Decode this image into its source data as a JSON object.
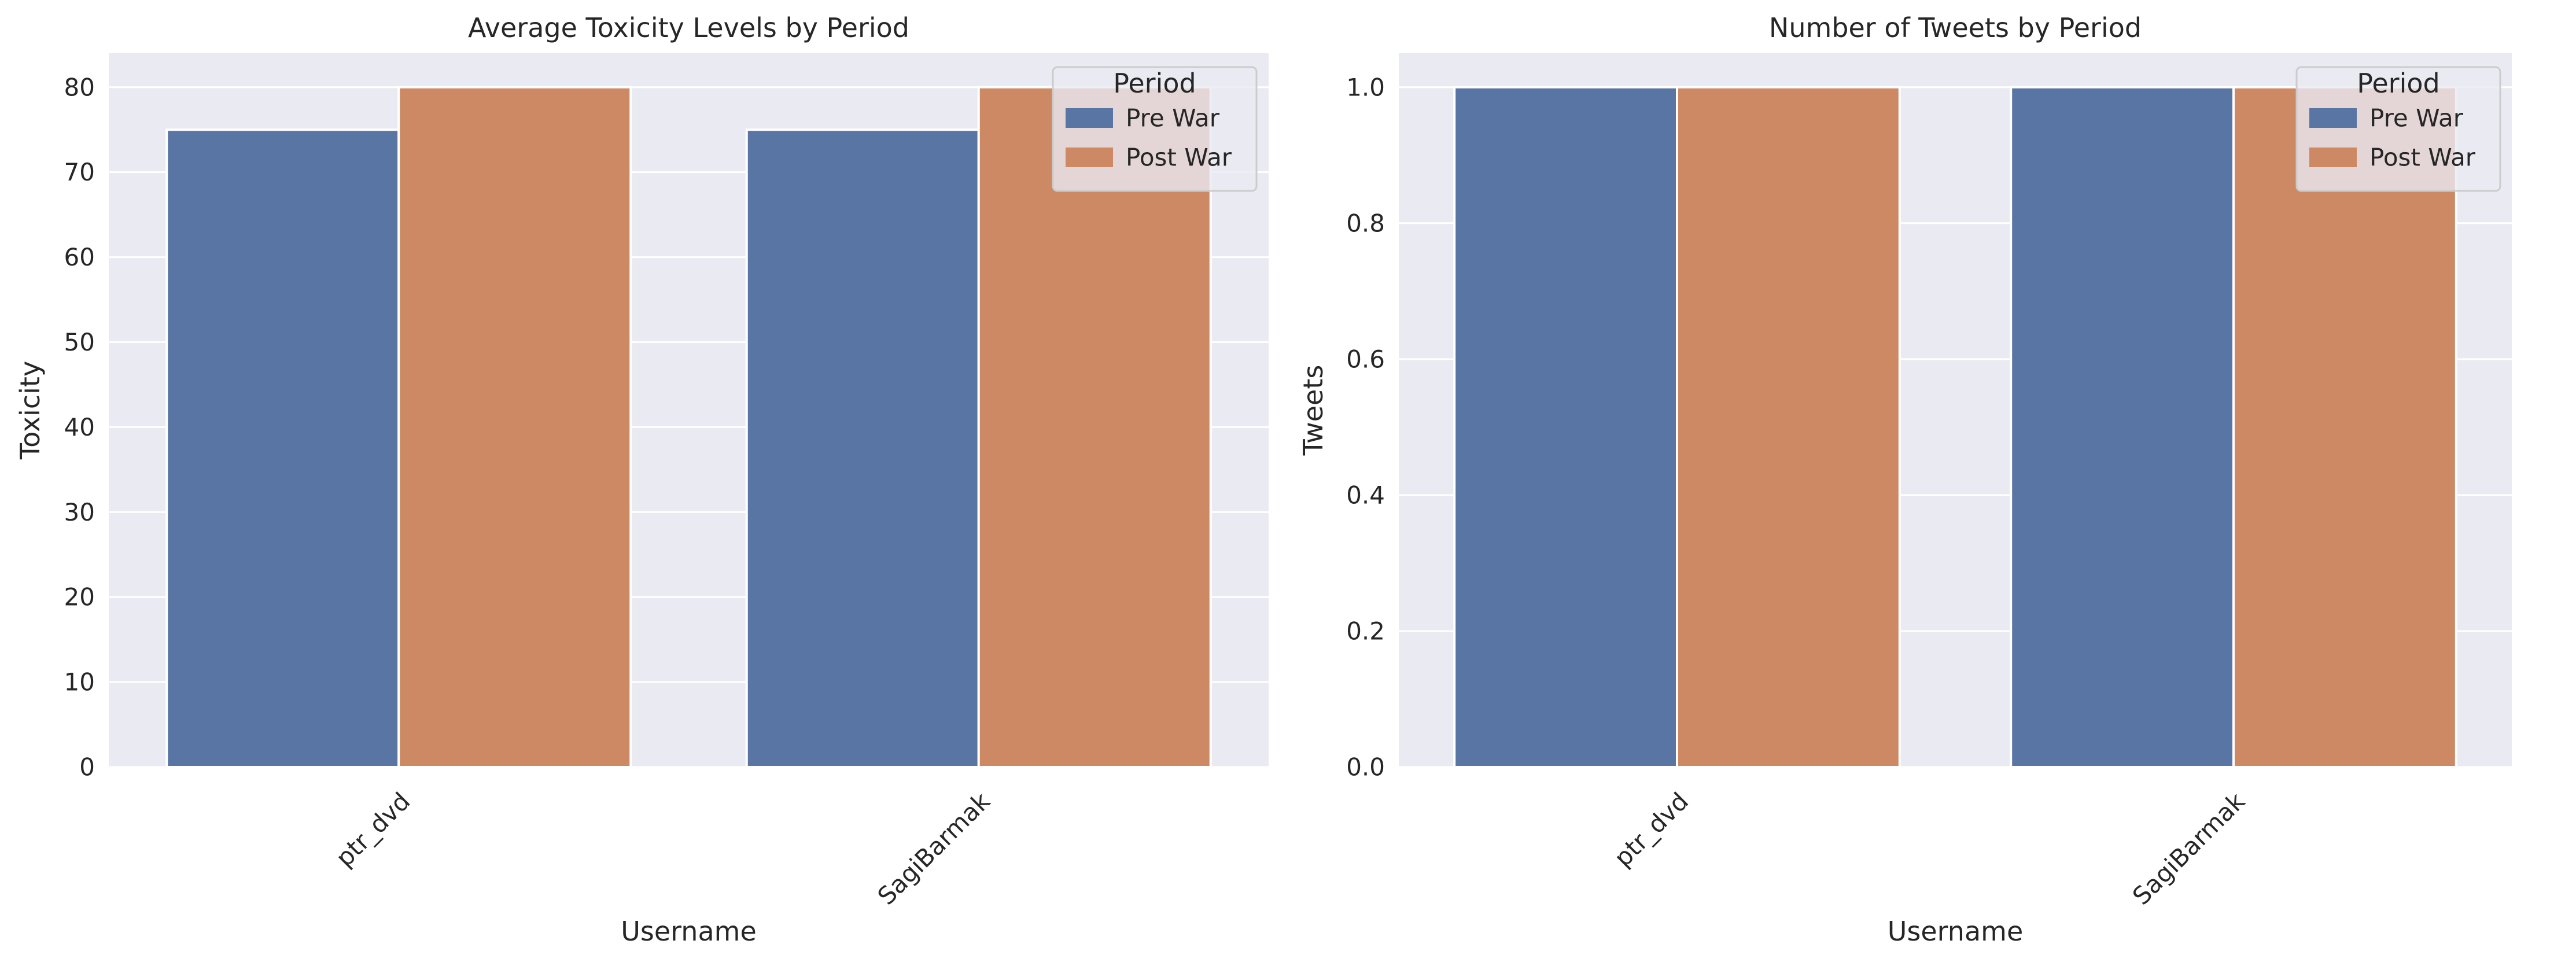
{
  "colors": {
    "background": "#ffffff",
    "plot_background": "#eaeaf2",
    "grid": "#ffffff",
    "pre_war": "#5975a4",
    "post_war": "#cc8963",
    "bar_edge": "#ffffff",
    "legend_border": "#cccccc"
  },
  "chart_data": [
    {
      "type": "bar",
      "title": "Average Toxicity Levels by Period",
      "xlabel": "Username",
      "ylabel": "Toxicity",
      "categories": [
        "ptr_dvd",
        "SagiBarmak"
      ],
      "series": [
        {
          "name": "Pre War",
          "values": [
            75,
            75
          ]
        },
        {
          "name": "Post War",
          "values": [
            80,
            80
          ]
        }
      ],
      "ylim": [
        0,
        84
      ],
      "yticks": [
        0,
        10,
        20,
        30,
        40,
        50,
        60,
        70,
        80
      ],
      "ytick_labels": [
        "0",
        "10",
        "20",
        "30",
        "40",
        "50",
        "60",
        "70",
        "80"
      ],
      "xtick_rotation": 45,
      "grid": true,
      "legend": {
        "title": "Period",
        "placement": "top-right"
      }
    },
    {
      "type": "bar",
      "title": "Number of Tweets by Period",
      "xlabel": "Username",
      "ylabel": "Tweets",
      "categories": [
        "ptr_dvd",
        "SagiBarmak"
      ],
      "series": [
        {
          "name": "Pre War",
          "values": [
            1,
            1
          ]
        },
        {
          "name": "Post War",
          "values": [
            1,
            1
          ]
        }
      ],
      "ylim": [
        0,
        1.05
      ],
      "yticks": [
        0,
        0.2,
        0.4,
        0.6,
        0.8,
        1.0
      ],
      "ytick_labels": [
        "0.0",
        "0.2",
        "0.4",
        "0.6",
        "0.8",
        "1.0"
      ],
      "xtick_rotation": 45,
      "grid": true,
      "legend": {
        "title": "Period",
        "placement": "top-right"
      }
    }
  ]
}
